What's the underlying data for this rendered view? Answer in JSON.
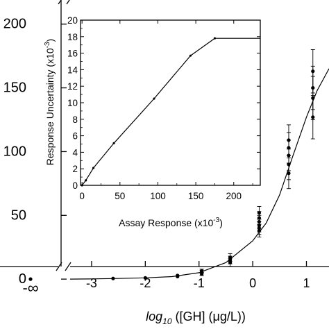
{
  "chart_data": [
    {
      "type": "scatter",
      "role": "main",
      "xlabel": {
        "prefix": "log",
        "sub": "10",
        "rest": " ([GH] (μg/L))"
      },
      "ylabel": "",
      "x_axis_break": true,
      "x_infinity_label": "-∞",
      "x_ticks": [
        -3,
        -2,
        -1,
        0,
        1
      ],
      "xlim": [
        -3.4,
        1.42
      ],
      "y_tick_labels": [
        "0",
        "50",
        "100",
        "150",
        "200"
      ],
      "y_ticks": [
        0,
        50,
        100,
        150,
        200
      ],
      "ylim": [
        -10,
        220
      ],
      "points": [
        {
          "x": "-∞",
          "y": 0
        },
        {
          "x": -2.6,
          "y": 0.5
        },
        {
          "x": -2.0,
          "y": 1
        },
        {
          "x": -1.4,
          "y": 2
        },
        {
          "x": -1.4,
          "y": 2.8
        },
        {
          "x": -0.95,
          "y": 4,
          "err": 1.2
        },
        {
          "x": -0.95,
          "y": 5.5,
          "err": 1.2
        },
        {
          "x": -0.95,
          "y": 6.5,
          "err": 1.3
        },
        {
          "x": -0.42,
          "y": 13,
          "err": 3
        },
        {
          "x": -0.42,
          "y": 15,
          "err": 3
        },
        {
          "x": -0.42,
          "y": 17,
          "err": 3
        },
        {
          "x": 0.12,
          "y": 38,
          "err": 5
        },
        {
          "x": 0.12,
          "y": 40,
          "err": 5
        },
        {
          "x": 0.12,
          "y": 42,
          "err": 5
        },
        {
          "x": 0.12,
          "y": 45,
          "err": 5
        },
        {
          "x": 0.12,
          "y": 48,
          "err": 5
        },
        {
          "x": 0.12,
          "y": 52,
          "err": 5
        },
        {
          "x": 0.67,
          "y": 83,
          "err": 12
        },
        {
          "x": 0.67,
          "y": 90,
          "err": 12
        },
        {
          "x": 0.67,
          "y": 97,
          "err": 12
        },
        {
          "x": 0.67,
          "y": 103,
          "err": 12
        },
        {
          "x": 0.67,
          "y": 109,
          "err": 12
        },
        {
          "x": 1.12,
          "y": 127,
          "err": 17
        },
        {
          "x": 1.12,
          "y": 142,
          "err": 17
        },
        {
          "x": 1.12,
          "y": 150,
          "err": 17
        },
        {
          "x": 1.12,
          "y": 163,
          "err": 17
        }
      ],
      "curve": [
        {
          "x": -3.4,
          "y": 0
        },
        {
          "x": -3.0,
          "y": 0.2
        },
        {
          "x": -2.5,
          "y": 0.5
        },
        {
          "x": -2.0,
          "y": 1.0
        },
        {
          "x": -1.5,
          "y": 2.0
        },
        {
          "x": -1.0,
          "y": 5.0
        },
        {
          "x": -0.5,
          "y": 13
        },
        {
          "x": 0.0,
          "y": 30
        },
        {
          "x": 0.25,
          "y": 44
        },
        {
          "x": 0.5,
          "y": 66
        },
        {
          "x": 0.75,
          "y": 97
        },
        {
          "x": 1.0,
          "y": 127
        },
        {
          "x": 1.2,
          "y": 148
        },
        {
          "x": 1.42,
          "y": 165
        }
      ]
    },
    {
      "type": "line",
      "role": "inset",
      "xlabel": {
        "base": "Assay Response (x10",
        "sup": "-3",
        "close": ")"
      },
      "ylabel": {
        "base": "Response Uncertainty (x10",
        "sup": "-3",
        "close": ")"
      },
      "x_ticks": [
        0,
        50,
        100,
        150,
        200
      ],
      "y_ticks": [
        0,
        2,
        4,
        6,
        8,
        10,
        12,
        14,
        16,
        18,
        20
      ],
      "xlim": [
        -2,
        235
      ],
      "ylim": [
        0,
        20
      ],
      "x": [
        0,
        5,
        15,
        42,
        95,
        143,
        175,
        235
      ],
      "y": [
        0,
        0.6,
        2.1,
        5.1,
        10.5,
        15.7,
        17.8,
        17.8
      ],
      "markers": [
        0,
        5,
        15,
        42,
        95,
        143,
        175
      ]
    }
  ]
}
